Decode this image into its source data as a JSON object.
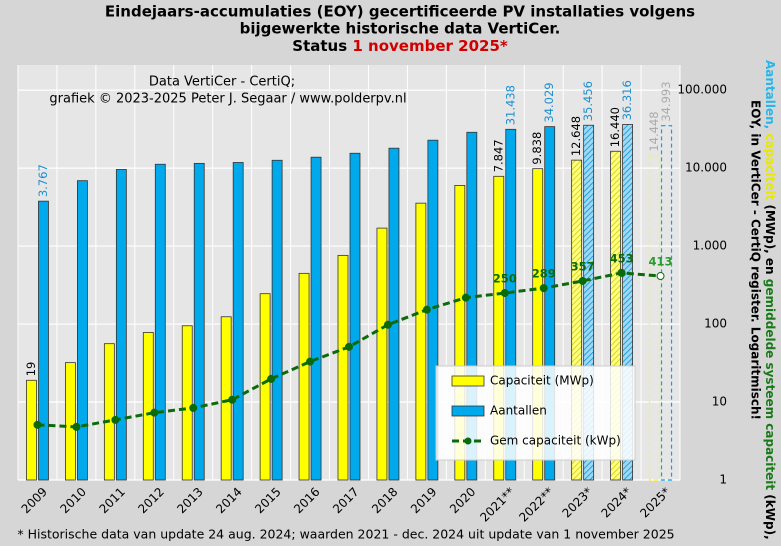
{
  "chart_data": {
    "type": "bar",
    "title_lines": [
      "Eindejaars-accumulaties (EOY) gecertificeerde PV installaties volgens",
      "bijgewerkte historische data VertiCer."
    ],
    "title_status": "Status",
    "title_date": "1 november 2025*",
    "annotation_lines": [
      "Data VertiCer - CertiQ;",
      "grafiek © 2023-2025 Peter J. Segaar / www.polderpv.nl"
    ],
    "footnote": "* Historische data van update 24 aug. 2024; waarden 2021 - dec. 2024 uit update van 1 november 2025",
    "y_label_parts": [
      {
        "text": "Aantallen,",
        "color": "#29b6e8"
      },
      {
        "text": "capaciteit",
        "color": "#e8e800"
      },
      {
        "text": "(MWp), en",
        "color": "#000000"
      },
      {
        "text": "gemiddelde systeem capaciteit",
        "color": "#1a7a1a"
      },
      {
        "text": "(kWp),",
        "color": "#000000"
      }
    ],
    "y_label_line2": "EOY, in VertiCer - CertiQ register. Logaritmisch!",
    "categories": [
      "2009",
      "2010",
      "2011",
      "2012",
      "2013",
      "2014",
      "2015",
      "2016",
      "2017",
      "2018",
      "2019",
      "2020",
      "2021**",
      "2022**",
      "2023*",
      "2024*",
      "2025*"
    ],
    "log_scale": true,
    "grid": true,
    "ylim": [
      1,
      210000
    ],
    "yticks": [
      1,
      10,
      100,
      {
        "value": 1000,
        "label": "1.000"
      },
      {
        "value": 10000,
        "label": "10.000"
      },
      {
        "value": 100000,
        "label": "100.000"
      }
    ],
    "series": [
      {
        "name": "Capaciteit (MWp)",
        "type": "bar",
        "color": "#ffff00",
        "values": [
          19,
          32,
          56,
          78,
          95,
          124,
          245,
          447,
          760,
          1700,
          3550,
          6000,
          7847,
          9838,
          12648,
          16440,
          14448
        ],
        "value_labels": [
          "19",
          null,
          null,
          null,
          null,
          null,
          null,
          null,
          null,
          null,
          null,
          null,
          "7.847",
          "9.838",
          "12.648",
          "16.440",
          "14.448"
        ]
      },
      {
        "name": "Aantallen",
        "type": "bar",
        "color": "#00a8ec",
        "values": [
          3767,
          6900,
          9600,
          11200,
          11500,
          11800,
          12600,
          13800,
          15500,
          18000,
          22800,
          28800,
          31438,
          34029,
          35456,
          36316,
          34993
        ],
        "value_labels": [
          "3.767",
          null,
          null,
          null,
          null,
          null,
          null,
          null,
          null,
          null,
          null,
          null,
          "31.438",
          "34.029",
          "35.456",
          "36.316",
          "34.993"
        ]
      },
      {
        "name": "Gem capaciteit (kWp)",
        "type": "line",
        "color": "#0b6b0b",
        "values": [
          5.1,
          4.8,
          5.9,
          7.3,
          8.4,
          10.7,
          19.8,
          33,
          51,
          98,
          153,
          218,
          250,
          289,
          357,
          453,
          413
        ],
        "value_labels": [
          null,
          null,
          null,
          null,
          null,
          null,
          null,
          null,
          null,
          null,
          null,
          null,
          "250",
          "289",
          "357",
          "453",
          "413"
        ]
      }
    ]
  }
}
